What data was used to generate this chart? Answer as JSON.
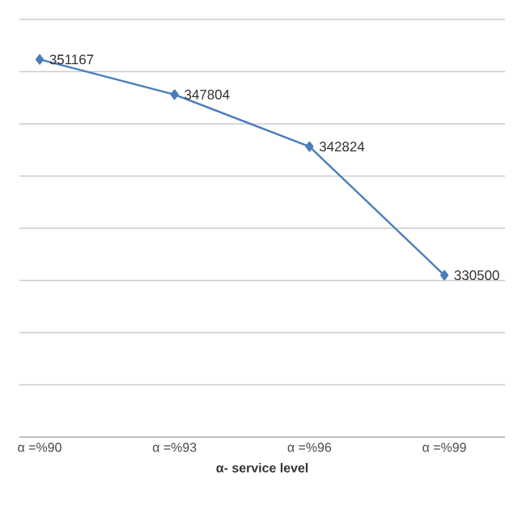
{
  "chart_data": {
    "type": "line",
    "xlabel": "**α- service level**",
    "categories": [
      "α =%90",
      "α =%93",
      "α =%96",
      "α =%99"
    ],
    "series": [
      {
        "color": "#4a7ebb",
        "values": [
          351167,
          347804,
          342824,
          330500
        ]
      }
    ],
    "ylim": [
      315000,
      355000
    ],
    "yticks": [
      {
        "value": 315000,
        "label": null
      },
      {
        "value": 320000,
        "label": null
      },
      {
        "value": 325000,
        "label": null
      },
      {
        "value": 330000,
        "label": null
      },
      {
        "value": 335000,
        "label": null
      },
      {
        "value": 340000,
        "label": null
      },
      {
        "value": 345000,
        "label": null
      },
      {
        "value": 350000,
        "label": null
      },
      {
        "value": 355000,
        "label": null
      }
    ],
    "tick_labels": "x",
    "grid": "y",
    "marker": "diamond",
    "line_style": "solid",
    "data_labels": true
  }
}
